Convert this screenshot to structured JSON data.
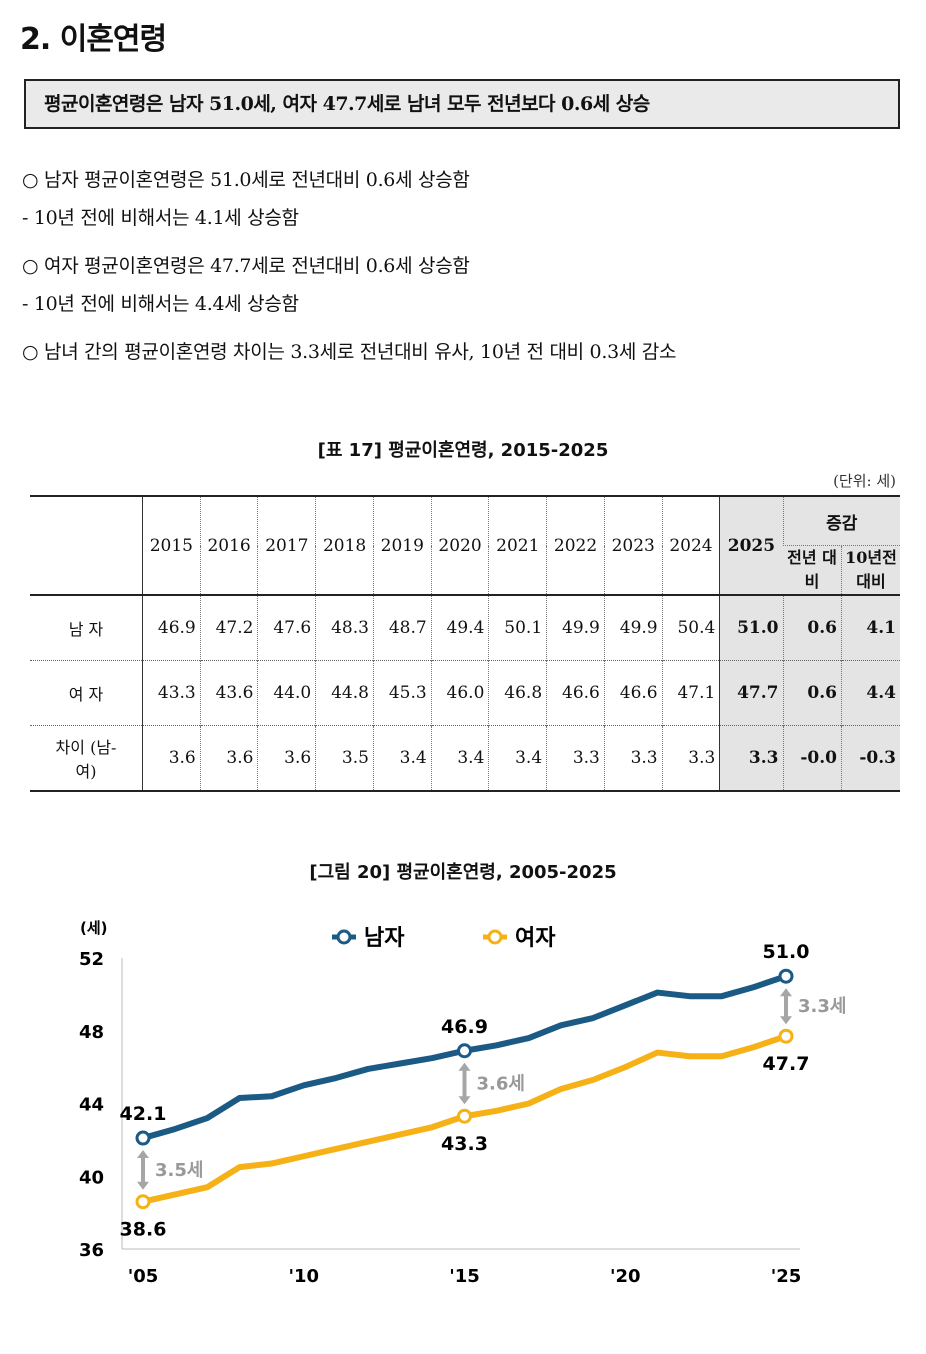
{
  "title": "2. 이혼연령",
  "summary": "평균이혼연령은 남자 51.0세, 여자 47.7세로 남녀 모두 전년보다 0.6세 상승",
  "bullets": [
    {
      "text": "○  남자 평균이혼연령은 51.0세로 전년대비 0.6세 상승함"
    },
    {
      "text": "  - 10년 전에 비해서는 4.1세 상승함"
    },
    {
      "text": "○  여자 평균이혼연령은 47.7세로 전년대비 0.6세 상승함"
    },
    {
      "text": "  - 10년 전에 비해서는 4.4세 상승함"
    },
    {
      "text": "○  남녀 간의 평균이혼연령 차이는 3.3세로 전년대비 유사, 10년 전 대비 0.3세 감소"
    }
  ],
  "table": {
    "caption": "[표 17] 평균이혼연령, 2015-2025",
    "unit": "(단위: 세)",
    "years": [
      "2015",
      "2016",
      "2017",
      "2018",
      "2019",
      "2020",
      "2021",
      "2022",
      "2023",
      "2024",
      "2025"
    ],
    "change_header": "증감",
    "change_cols": [
      "전년 대비",
      "10년전 대비"
    ],
    "rows": [
      {
        "label": "남 자",
        "values": [
          "46.9",
          "47.2",
          "47.6",
          "48.3",
          "48.7",
          "49.4",
          "50.1",
          "49.9",
          "49.9",
          "50.4",
          "51.0"
        ],
        "changes": [
          "0.6",
          "4.1"
        ]
      },
      {
        "label": "여 자",
        "values": [
          "43.3",
          "43.6",
          "44.0",
          "44.8",
          "45.3",
          "46.0",
          "46.8",
          "46.6",
          "46.6",
          "47.1",
          "47.7"
        ],
        "changes": [
          "0.6",
          "4.4"
        ]
      },
      {
        "label": "차이 (남-여)",
        "values": [
          "3.6",
          "3.6",
          "3.6",
          "3.5",
          "3.4",
          "3.4",
          "3.4",
          "3.3",
          "3.3",
          "3.3",
          "3.3"
        ],
        "changes": [
          "-0.0",
          "-0.3"
        ]
      }
    ]
  },
  "chart_data": {
    "type": "line",
    "title": "[그림 20] 평균이혼연령, 2005-2025",
    "ylabel": "(세)",
    "ylim": [
      36,
      52
    ],
    "yticks": [
      "36",
      "40",
      "44",
      "48",
      "52"
    ],
    "x": [
      2005,
      2006,
      2007,
      2008,
      2009,
      2010,
      2011,
      2012,
      2013,
      2014,
      2015,
      2016,
      2017,
      2018,
      2019,
      2020,
      2021,
      2022,
      2023,
      2024,
      2025
    ],
    "xticks": [
      {
        "x": 2005,
        "label": "'05"
      },
      {
        "x": 2010,
        "label": "'10"
      },
      {
        "x": 2015,
        "label": "'15"
      },
      {
        "x": 2020,
        "label": "'20"
      },
      {
        "x": 2025,
        "label": "'25"
      }
    ],
    "series": [
      {
        "name": "남자",
        "color": "#1a5a85",
        "values": [
          42.1,
          42.6,
          43.2,
          44.3,
          44.4,
          45.0,
          45.4,
          45.9,
          46.2,
          46.5,
          46.9,
          47.2,
          47.6,
          48.3,
          48.7,
          49.4,
          50.1,
          49.9,
          49.9,
          50.4,
          51.0
        ],
        "labels": {
          "2005": "42.1",
          "2015": "46.9",
          "2025": "51.0"
        }
      },
      {
        "name": "여자",
        "color": "#f5b116",
        "values": [
          38.6,
          39.0,
          39.4,
          40.5,
          40.7,
          41.1,
          41.5,
          41.9,
          42.3,
          42.7,
          43.3,
          43.6,
          44.0,
          44.8,
          45.3,
          46.0,
          46.8,
          46.6,
          46.6,
          47.1,
          47.7
        ],
        "labels": {
          "2005": "38.6",
          "2015": "43.3",
          "2025": "47.7"
        }
      }
    ],
    "gaps": [
      {
        "x": 2005,
        "label": "3.5세"
      },
      {
        "x": 2015,
        "label": "3.6세"
      },
      {
        "x": 2025,
        "label": "3.3세"
      }
    ]
  }
}
